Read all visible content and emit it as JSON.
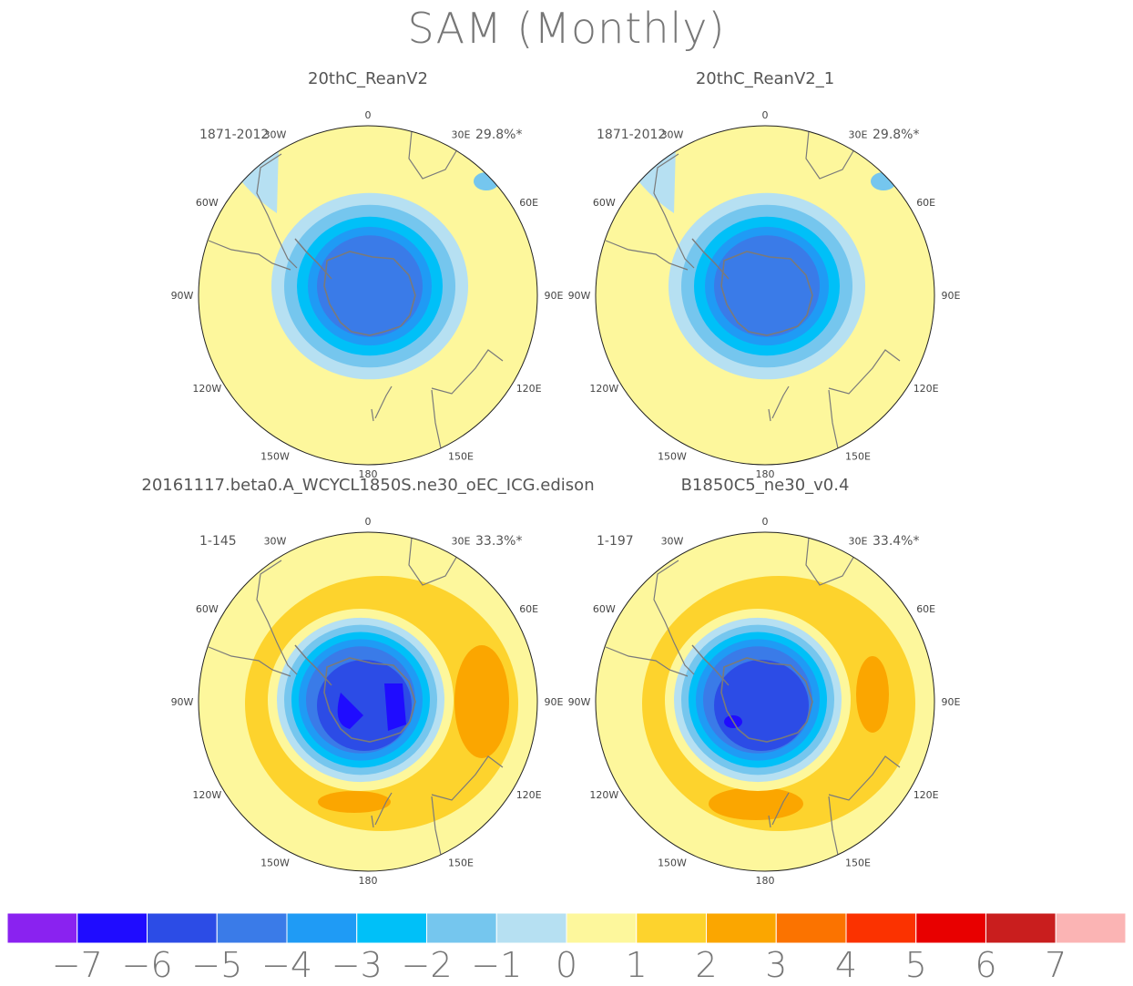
{
  "title": "SAM (Monthly)",
  "panels": [
    {
      "name": "20thC_ReanV2",
      "years": "1871-2012",
      "percent": "29.8%*",
      "pattern": "reanalysis"
    },
    {
      "name": "20thC_ReanV2_1",
      "years": "1871-2012",
      "percent": "29.8%*",
      "pattern": "reanalysis"
    },
    {
      "name": "20161117.beta0.A_WCYCL1850S.ne30_oEC_ICG.edison",
      "years": "1-145",
      "percent": "33.3%*",
      "pattern": "model_a"
    },
    {
      "name": "B1850C5_ne30_v0.4",
      "years": "1-197",
      "percent": "33.4%*",
      "pattern": "model_b"
    }
  ],
  "longitude_labels": {
    "top": "0",
    "bottom": "180",
    "left": [
      "30W",
      "60W",
      "90W",
      "120W",
      "150W"
    ],
    "right": [
      "30E",
      "60E",
      "90E",
      "120E",
      "150E"
    ]
  },
  "colorbar": {
    "tick_labels": [
      "−7",
      "−6",
      "−5",
      "−4",
      "−3",
      "−2",
      "−1",
      "0",
      "1",
      "2",
      "3",
      "4",
      "5",
      "6",
      "7"
    ],
    "colors": [
      "#8a22f0",
      "#1f0cff",
      "#2c4ce6",
      "#3a7be8",
      "#1f9bf5",
      "#00c0f8",
      "#75c6ee",
      "#b6e0f2",
      "#fdf79c",
      "#fdd32d",
      "#fba600",
      "#fb7300",
      "#fb3200",
      "#e80000",
      "#c91e1e",
      "#fbb4b4"
    ]
  }
}
